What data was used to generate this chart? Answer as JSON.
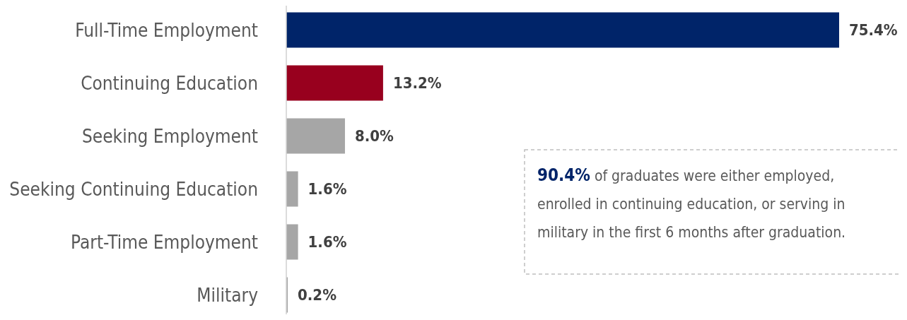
{
  "chart_data": {
    "type": "bar",
    "orientation": "horizontal",
    "categories": [
      "Full-Time Employment",
      "Continuing Education",
      "Seeking Employment",
      "Seeking Continuing Education",
      "Part-Time Employment",
      "Military"
    ],
    "values": [
      75.4,
      13.2,
      8.0,
      1.6,
      1.6,
      0.2
    ],
    "colors": [
      "#002469",
      "#98001e",
      "#a6a6a6",
      "#a6a6a6",
      "#a6a6a6",
      "#a6a6a6"
    ],
    "value_labels": [
      "75.4%",
      "13.2%",
      "8.0%",
      "1.6%",
      "1.6%",
      "0.2%"
    ],
    "annotations": [
      "90.4% of graduates were either employed, enrolled in continuing education, or serving in military in the first 6 months after graduation."
    ]
  }
}
